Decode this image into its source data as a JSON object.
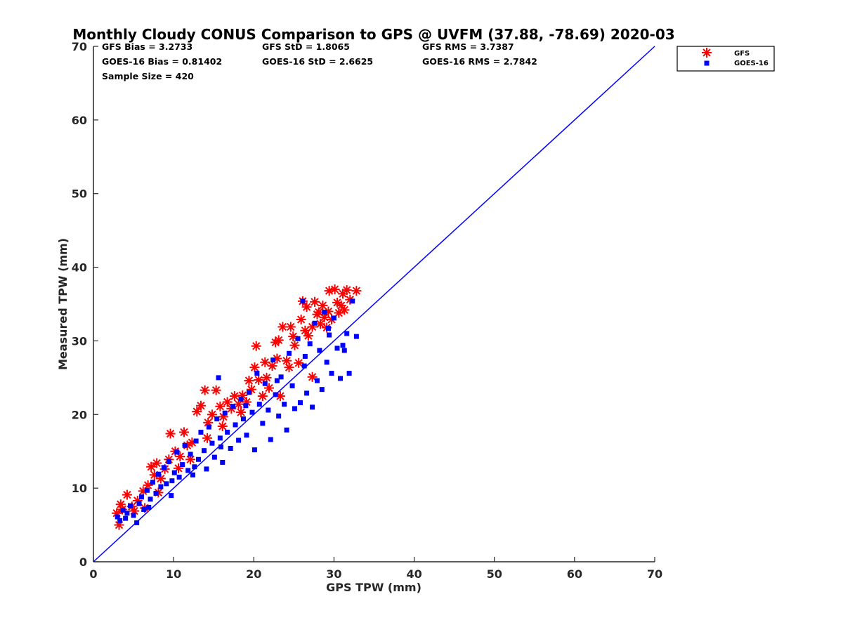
{
  "chart_data": {
    "type": "scatter",
    "title": "Monthly Cloudy CONUS Comparison to GPS @ UVFM (37.88, -78.69) 2020-03",
    "xlabel": "GPS TPW (mm)",
    "ylabel": "Measured TPW (mm)",
    "xlim": [
      0,
      70
    ],
    "ylim": [
      0,
      70
    ],
    "xticks": [
      "0",
      "10",
      "20",
      "30",
      "40",
      "50",
      "60",
      "70"
    ],
    "yticks": [
      "0",
      "10",
      "20",
      "30",
      "40",
      "50",
      "60",
      "70"
    ],
    "grid": false,
    "legend_position": "top-right",
    "stats": {
      "gfs_bias": "GFS Bias = 3.2733",
      "gfs_std": "GFS StD = 1.8065",
      "gfs_rms": "GFS RMS = 3.7387",
      "goes_bias": "GOES-16 Bias = 0.81402",
      "goes_std": "GOES-16 StD = 2.6625",
      "goes_rms": "GOES-16 RMS = 2.7842",
      "sample_size": "Sample Size = 420"
    },
    "reference_line": {
      "x": [
        0,
        70
      ],
      "y": [
        0,
        70
      ],
      "color": "#0000ff"
    },
    "series": [
      {
        "name": "GFS",
        "marker": "asterisk",
        "color": "#ff0000",
        "points": [
          [
            2.9,
            6.6
          ],
          [
            3.2,
            5.0
          ],
          [
            3.4,
            7.8
          ],
          [
            4.2,
            9.1
          ],
          [
            4.8,
            7.5
          ],
          [
            5.5,
            8.3
          ],
          [
            6.2,
            9.6
          ],
          [
            6.8,
            10.4
          ],
          [
            7.2,
            12.9
          ],
          [
            7.6,
            11.8
          ],
          [
            7.9,
            13.4
          ],
          [
            8.4,
            11.3
          ],
          [
            8.9,
            12.6
          ],
          [
            9.4,
            13.9
          ],
          [
            9.6,
            17.4
          ],
          [
            10.2,
            15.0
          ],
          [
            10.8,
            14.3
          ],
          [
            11.3,
            17.6
          ],
          [
            11.7,
            15.8
          ],
          [
            12.3,
            16.2
          ],
          [
            12.9,
            20.4
          ],
          [
            13.4,
            21.2
          ],
          [
            13.9,
            23.3
          ],
          [
            14.3,
            18.9
          ],
          [
            14.8,
            20.0
          ],
          [
            15.3,
            23.3
          ],
          [
            15.8,
            21.1
          ],
          [
            16.2,
            19.7
          ],
          [
            16.7,
            21.7
          ],
          [
            17.2,
            20.8
          ],
          [
            17.6,
            22.5
          ],
          [
            18.1,
            21.4
          ],
          [
            18.6,
            22.6
          ],
          [
            19.1,
            21.7
          ],
          [
            19.7,
            23.4
          ],
          [
            20.1,
            26.4
          ],
          [
            20.3,
            29.3
          ],
          [
            20.6,
            24.7
          ],
          [
            21.1,
            22.5
          ],
          [
            21.6,
            25.0
          ],
          [
            21.9,
            23.6
          ],
          [
            22.3,
            26.6
          ],
          [
            22.7,
            29.8
          ],
          [
            23.1,
            30.1
          ],
          [
            23.3,
            22.5
          ],
          [
            23.6,
            31.9
          ],
          [
            24.1,
            27.3
          ],
          [
            24.6,
            31.9
          ],
          [
            24.4,
            26.4
          ],
          [
            25.1,
            29.4
          ],
          [
            25.6,
            27.0
          ],
          [
            25.9,
            32.9
          ],
          [
            26.1,
            35.4
          ],
          [
            26.6,
            34.6
          ],
          [
            26.8,
            30.7
          ],
          [
            27.3,
            31.9
          ],
          [
            27.6,
            35.3
          ],
          [
            27.3,
            25.1
          ],
          [
            27.9,
            33.6
          ],
          [
            28.3,
            32.3
          ],
          [
            28.6,
            34.8
          ],
          [
            28.8,
            33.2
          ],
          [
            29.3,
            34.0
          ],
          [
            29.4,
            36.8
          ],
          [
            29.7,
            32.9
          ],
          [
            30.1,
            37.0
          ],
          [
            30.4,
            35.2
          ],
          [
            30.6,
            33.8
          ],
          [
            31.1,
            36.4
          ],
          [
            31.6,
            36.9
          ],
          [
            31.3,
            34.2
          ],
          [
            32.0,
            35.6
          ],
          [
            32.8,
            36.8
          ],
          [
            3.6,
            7.1
          ],
          [
            5.1,
            6.9
          ],
          [
            6.4,
            7.3
          ],
          [
            8.1,
            9.4
          ],
          [
            10.6,
            12.7
          ],
          [
            12.1,
            13.9
          ],
          [
            14.2,
            16.8
          ],
          [
            16.1,
            18.4
          ],
          [
            18.4,
            20.3
          ],
          [
            19.4,
            24.6
          ],
          [
            21.4,
            27.1
          ],
          [
            22.9,
            27.6
          ],
          [
            24.9,
            30.6
          ],
          [
            26.4,
            31.4
          ],
          [
            28.1,
            33.9
          ],
          [
            29.1,
            31.8
          ],
          [
            30.9,
            34.8
          ]
        ]
      },
      {
        "name": "GOES-16",
        "marker": "square",
        "color": "#0000ff",
        "points": [
          [
            3.0,
            6.1
          ],
          [
            3.3,
            5.6
          ],
          [
            3.7,
            7.0
          ],
          [
            4.2,
            6.6
          ],
          [
            4.6,
            7.6
          ],
          [
            5.0,
            6.3
          ],
          [
            5.4,
            5.3
          ],
          [
            5.7,
            7.9
          ],
          [
            6.0,
            8.8
          ],
          [
            6.3,
            7.1
          ],
          [
            6.7,
            9.7
          ],
          [
            7.1,
            8.5
          ],
          [
            7.4,
            10.8
          ],
          [
            7.8,
            9.3
          ],
          [
            8.1,
            11.9
          ],
          [
            8.4,
            10.2
          ],
          [
            8.8,
            12.8
          ],
          [
            9.1,
            10.6
          ],
          [
            9.4,
            13.6
          ],
          [
            9.7,
            9.0
          ],
          [
            10.1,
            12.1
          ],
          [
            10.4,
            14.9
          ],
          [
            10.7,
            11.5
          ],
          [
            11.1,
            13.2
          ],
          [
            11.4,
            15.8
          ],
          [
            11.8,
            12.4
          ],
          [
            12.1,
            14.6
          ],
          [
            12.4,
            11.8
          ],
          [
            12.8,
            16.4
          ],
          [
            13.1,
            13.9
          ],
          [
            13.4,
            17.6
          ],
          [
            13.8,
            15.1
          ],
          [
            14.1,
            12.6
          ],
          [
            14.4,
            18.3
          ],
          [
            14.8,
            16.1
          ],
          [
            15.1,
            14.2
          ],
          [
            15.4,
            19.4
          ],
          [
            15.6,
            25.0
          ],
          [
            15.8,
            16.8
          ],
          [
            16.1,
            13.5
          ],
          [
            16.4,
            20.2
          ],
          [
            16.7,
            17.6
          ],
          [
            17.1,
            15.4
          ],
          [
            17.4,
            21.1
          ],
          [
            17.7,
            18.6
          ],
          [
            18.1,
            16.5
          ],
          [
            18.4,
            22.1
          ],
          [
            18.7,
            19.4
          ],
          [
            19.1,
            17.2
          ],
          [
            19.4,
            23.0
          ],
          [
            19.8,
            20.3
          ],
          [
            20.1,
            15.2
          ],
          [
            20.4,
            25.6
          ],
          [
            20.7,
            21.4
          ],
          [
            21.1,
            18.8
          ],
          [
            21.4,
            24.2
          ],
          [
            21.8,
            20.6
          ],
          [
            22.1,
            16.6
          ],
          [
            22.4,
            27.4
          ],
          [
            22.7,
            22.7
          ],
          [
            23.1,
            19.8
          ],
          [
            23.4,
            25.1
          ],
          [
            23.8,
            21.4
          ],
          [
            24.1,
            17.9
          ],
          [
            24.4,
            28.3
          ],
          [
            24.8,
            23.9
          ],
          [
            25.1,
            20.8
          ],
          [
            25.5,
            30.3
          ],
          [
            25.8,
            21.6
          ],
          [
            26.1,
            35.4
          ],
          [
            26.3,
            26.6
          ],
          [
            26.6,
            22.9
          ],
          [
            27.0,
            29.6
          ],
          [
            27.3,
            21.0
          ],
          [
            27.6,
            32.4
          ],
          [
            27.9,
            24.6
          ],
          [
            28.2,
            28.7
          ],
          [
            28.5,
            23.4
          ],
          [
            28.8,
            33.9
          ],
          [
            29.1,
            27.1
          ],
          [
            29.4,
            30.8
          ],
          [
            29.7,
            25.6
          ],
          [
            30.0,
            33.1
          ],
          [
            30.4,
            29.0
          ],
          [
            30.8,
            24.9
          ],
          [
            31.1,
            29.4
          ],
          [
            31.6,
            31.0
          ],
          [
            31.9,
            25.6
          ],
          [
            32.3,
            35.4
          ],
          [
            32.8,
            30.6
          ],
          [
            4.0,
            5.9
          ],
          [
            6.9,
            7.4
          ],
          [
            9.8,
            11.0
          ],
          [
            12.6,
            12.9
          ],
          [
            15.9,
            15.6
          ],
          [
            19.0,
            21.2
          ],
          [
            22.9,
            24.6
          ],
          [
            26.4,
            27.9
          ],
          [
            29.3,
            31.7
          ],
          [
            31.3,
            28.7
          ]
        ]
      }
    ]
  }
}
